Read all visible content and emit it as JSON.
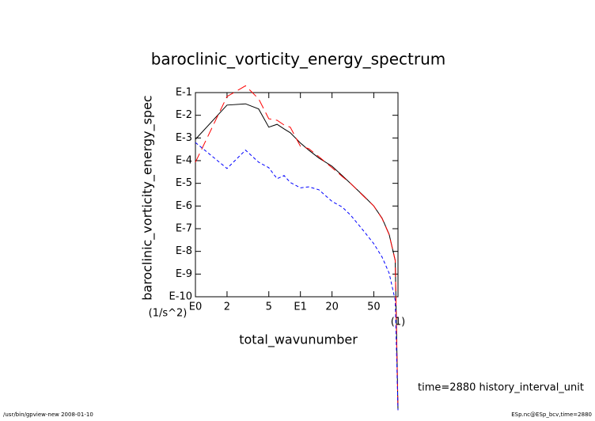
{
  "chart_data": {
    "type": "line",
    "title": "baroclinic_vorticity_energy_spectrum",
    "y_label": "baroclinic_vorticity_energy_spec",
    "y_unit": "(1/s^2)",
    "x_label": "total_wavunumber",
    "x_unit": "(1)",
    "annotation": "time=2880  history_interval_unit",
    "footer_left": "/usr/bin/gpview-new  2008-01-10",
    "footer_right": "ESp.nc@ESp_bcv,time=2880",
    "x_log": true,
    "y_log": true,
    "xlim": [
      1,
      85
    ],
    "ylim": [
      1e-10,
      0.1
    ],
    "xticks": [
      {
        "value": 1,
        "label": "E0"
      },
      2,
      5,
      {
        "value": 10,
        "label": "E1"
      },
      20,
      50
    ],
    "yticks": [
      {
        "value": 0.1,
        "label": "E-1"
      },
      {
        "value": 0.01,
        "label": "E-2"
      },
      {
        "value": 0.001,
        "label": "E-3"
      },
      {
        "value": 0.0001,
        "label": "E-4"
      },
      {
        "value": 1e-05,
        "label": "E-5"
      },
      {
        "value": 1e-06,
        "label": "E-6"
      },
      {
        "value": 1e-07,
        "label": "E-7"
      },
      {
        "value": 1e-08,
        "label": "E-8"
      },
      {
        "value": 1e-09,
        "label": "E-9"
      },
      {
        "value": 1e-10,
        "label": "E-10"
      }
    ],
    "x": [
      1,
      2,
      3,
      4,
      5,
      6,
      7,
      8,
      10,
      12,
      15,
      20,
      25,
      30,
      40,
      50,
      60,
      70,
      80,
      85
    ],
    "series": [
      {
        "color": "#000000",
        "dash": "none",
        "values": [
          0.00087,
          0.028,
          0.032,
          0.019,
          0.003,
          0.004,
          0.0025,
          0.0017,
          0.0006,
          0.00029,
          0.00013,
          5.7e-05,
          2.2e-05,
          1e-05,
          2.8e-06,
          1e-06,
          2.9e-07,
          5.7e-08,
          4e-09,
          1e-15
        ]
      },
      {
        "color": "#ff0000",
        "dash": "12,6",
        "values": [
          8.5e-05,
          0.067,
          0.2,
          0.053,
          0.007,
          0.006,
          0.0037,
          0.003,
          0.00043,
          0.00034,
          0.00015,
          4.9e-05,
          2e-05,
          1e-05,
          2.7e-06,
          1e-06,
          2.8e-07,
          5.5e-08,
          4e-09,
          1e-15
        ]
      },
      {
        "color": "#0000ff",
        "dash": "4,3",
        "values": [
          0.00063,
          4.5e-05,
          0.00029,
          8.5e-05,
          4.9e-05,
          1.6e-05,
          2.2e-05,
          1.1e-05,
          6.3e-06,
          7e-06,
          5.2e-06,
          1.6e-06,
          9e-07,
          4e-07,
          8e-08,
          2.2e-08,
          5.6e-09,
          1.1e-09,
          7e-11,
          1e-15
        ]
      }
    ]
  }
}
